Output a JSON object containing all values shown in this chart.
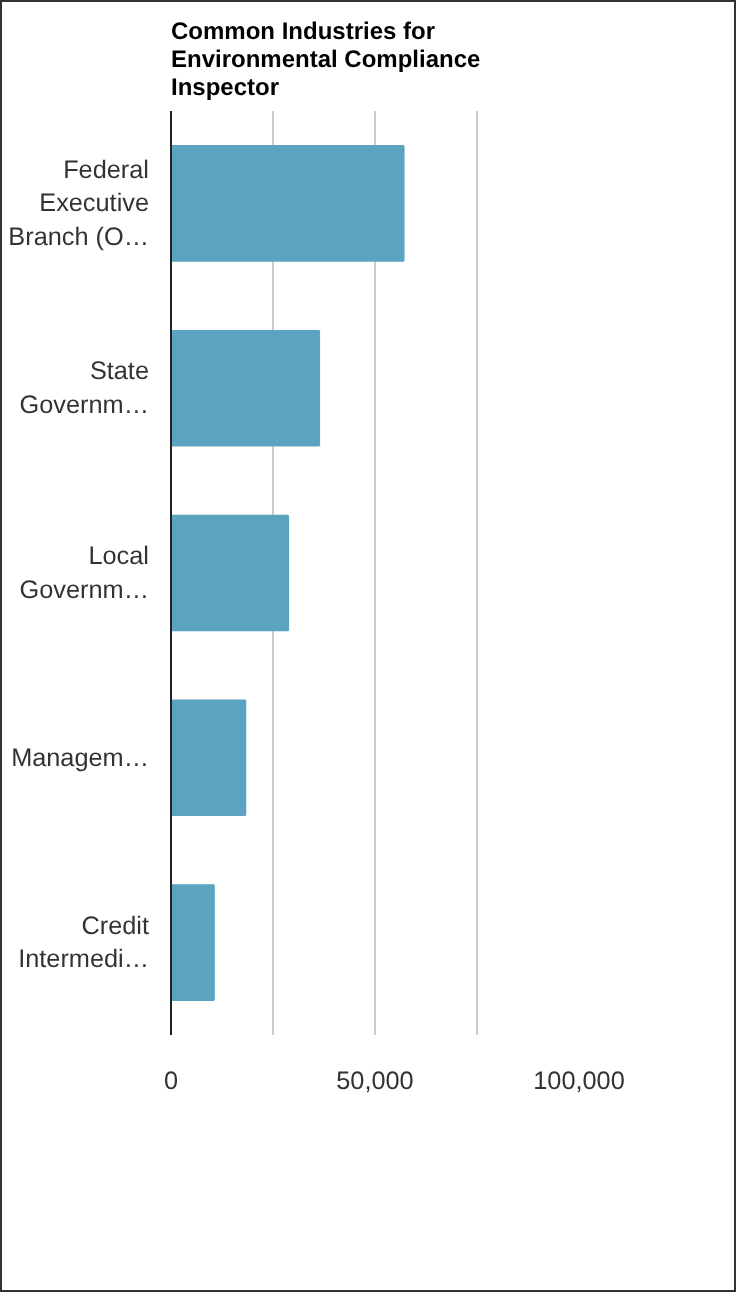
{
  "chart_data": {
    "type": "bar",
    "orientation": "horizontal",
    "title": "Common Industries for Environmental Compliance Inspector",
    "categories": [
      "Federal Executive Branch (O…",
      "State Governm…",
      "Local Governm…",
      "Managem…",
      "Credit Intermedi…"
    ],
    "values": [
      57000,
      36300,
      28700,
      18200,
      10500
    ],
    "color": "#5ba3c0",
    "xlim": [
      0,
      100000
    ],
    "xticks": [
      0,
      {
        "value": 25000,
        "label": null
      },
      {
        "value": 50000,
        "label": "50,000"
      },
      {
        "value": 75000,
        "label": null
      },
      {
        "value": 100000,
        "label": "100,000"
      }
    ],
    "grid": "x"
  }
}
